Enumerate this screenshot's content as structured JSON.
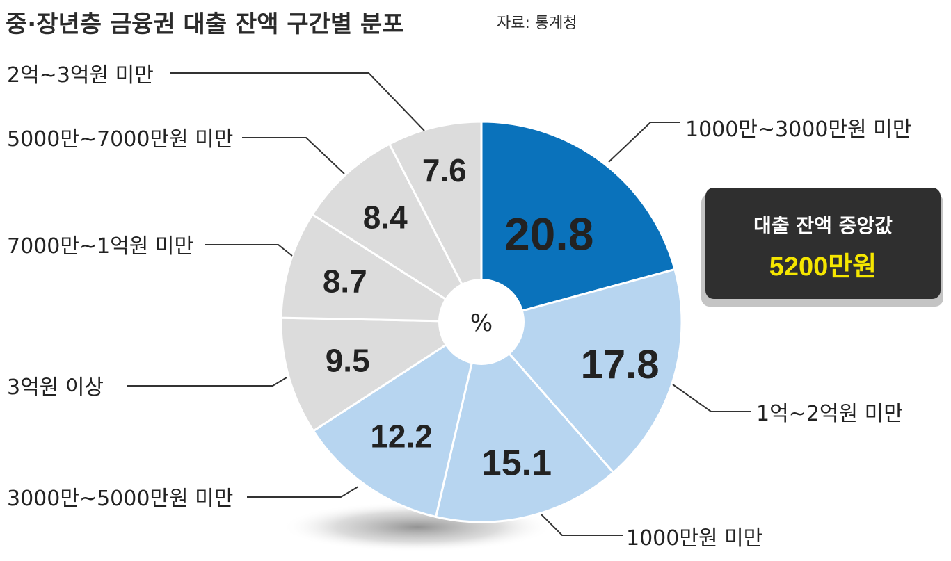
{
  "chart_data": {
    "type": "pie",
    "title": "중·장년층 금융권 대출 잔액 구간별 분포",
    "source": "자료: 통계청",
    "unit": "%",
    "slices": [
      {
        "label": "1000만~3000만원 미만",
        "value": 20.8,
        "color": "#0a72bb",
        "text_color": "#ffffff"
      },
      {
        "label": "1억~2억원 미만",
        "value": 17.8,
        "color": "#b7d5f0",
        "text_color": "#222222"
      },
      {
        "label": "1000만원 미만",
        "value": 15.1,
        "color": "#b7d5f0",
        "text_color": "#222222"
      },
      {
        "label": "3000만~5000만원 미만",
        "value": 12.2,
        "color": "#b7d5f0",
        "text_color": "#222222"
      },
      {
        "label": "3억원 이상",
        "value": 9.5,
        "color": "#dcdcdc",
        "text_color": "#222222"
      },
      {
        "label": "7000만~1억원 미만",
        "value": 8.7,
        "color": "#dcdcdc",
        "text_color": "#222222"
      },
      {
        "label": "5000만~7000만원 미만",
        "value": 8.4,
        "color": "#dcdcdc",
        "text_color": "#222222"
      },
      {
        "label": "2억~3억원 미만",
        "value": 7.6,
        "color": "#dcdcdc",
        "text_color": "#222222"
      }
    ],
    "callout": {
      "title": "대출 잔액 중앙값",
      "value": "5200만원"
    }
  }
}
